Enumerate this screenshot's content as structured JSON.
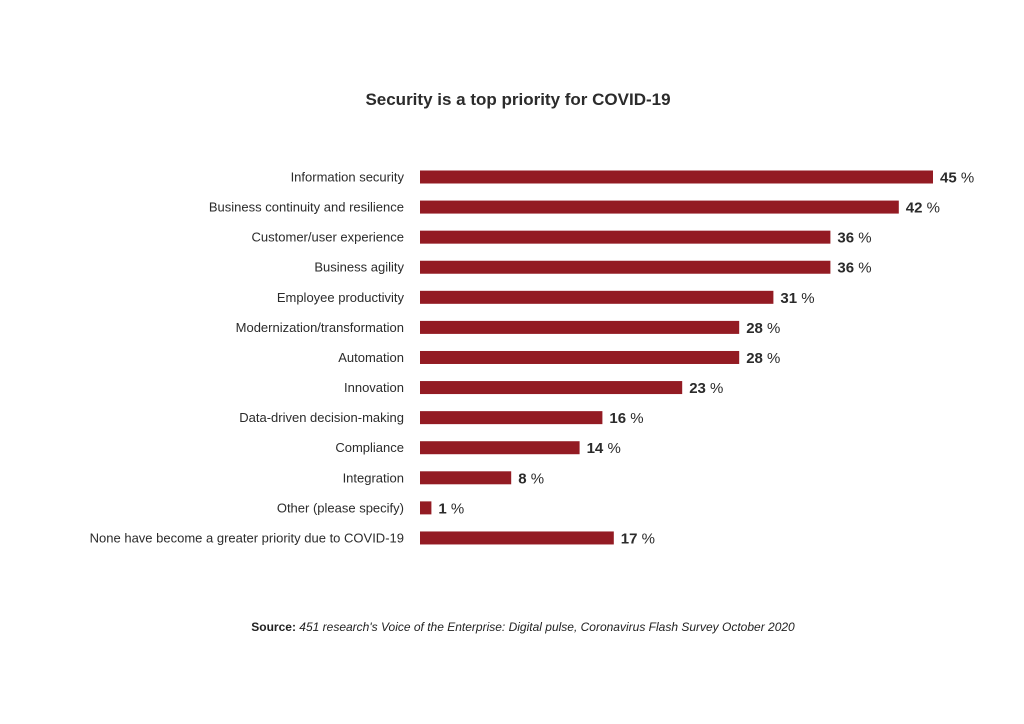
{
  "chart_data": {
    "type": "bar",
    "orientation": "horizontal",
    "title": "Security is a top priority for COVID-19",
    "categories": [
      "Information security",
      "Business continuity and resilience",
      "Customer/user experience",
      "Business agility",
      "Employee productivity",
      "Modernization/transformation",
      "Automation",
      "Innovation",
      "Data-driven decision-making",
      "Compliance",
      "Integration",
      "Other (please specify)",
      "None have become a greater priority due to COVID-19"
    ],
    "values": [
      45,
      42,
      36,
      36,
      31,
      28,
      28,
      23,
      16,
      14,
      8,
      1,
      17
    ],
    "value_labels": [
      "45 %",
      "42 %",
      "36 %",
      "36 %",
      "31 %",
      "28 %",
      "28 %",
      "23 %",
      "16 %",
      "14 %",
      "8 %",
      "1 %",
      "17 %"
    ],
    "xlim": [
      0,
      45
    ],
    "bar_color": "#931b23",
    "grid": false,
    "legend": "none"
  },
  "source": {
    "label": "Source:",
    "text": "451 research's Voice of the Enterprise: Digital pulse, Coronavirus Flash Survey October 2020"
  }
}
